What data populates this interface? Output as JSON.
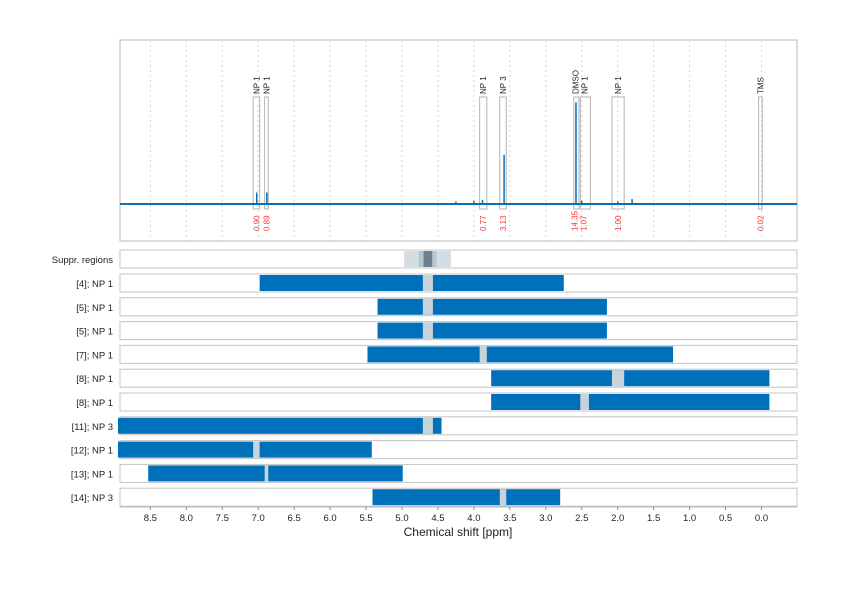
{
  "chart_data": {
    "type": "nmr-spectrum-with-region-bars",
    "xlabel": "Chemical shift [ppm]",
    "xlim": [
      8.95,
      -0.49
    ],
    "x_reversed": true,
    "xticks": [
      "8.5",
      "8.0",
      "7.5",
      "7.0",
      "6.5",
      "6.0",
      "5.5",
      "5.0",
      "4.5",
      "4.0",
      "3.5",
      "3.0",
      "2.5",
      "2.0",
      "1.5",
      "1.0",
      "0.5",
      "0.0"
    ],
    "grid": "vertical dotted",
    "colors": {
      "spectrum": "#0b6fb8",
      "bar": "#0070ba",
      "integral_label": "#ff3333",
      "gap": "#c8d2d9",
      "region_box": "#b0b0b0"
    },
    "spectrum_peaks": [
      {
        "ppm": 7.02,
        "height": 0.07
      },
      {
        "ppm": 6.88,
        "height": 0.07
      },
      {
        "ppm": 4.25,
        "height": 0.015
      },
      {
        "ppm": 4.0,
        "height": 0.02
      },
      {
        "ppm": 3.88,
        "height": 0.025
      },
      {
        "ppm": 3.58,
        "height": 0.3
      },
      {
        "ppm": 2.58,
        "height": 0.62
      },
      {
        "ppm": 2.5,
        "height": 0.02
      },
      {
        "ppm": 2.0,
        "height": 0.015
      },
      {
        "ppm": 1.8,
        "height": 0.03
      }
    ],
    "annotated_regions": [
      {
        "label": "NP 1",
        "from": 7.07,
        "to": 6.98,
        "integral": "0.90"
      },
      {
        "label": "NP 1",
        "from": 6.91,
        "to": 6.86,
        "integral": "0.89"
      },
      {
        "label": "NP 1",
        "from": 3.92,
        "to": 3.82,
        "integral": "0.77"
      },
      {
        "label": "NP 3",
        "from": 3.64,
        "to": 3.55,
        "integral": "3.13"
      },
      {
        "label": "DMSO",
        "from": 2.61,
        "to": 2.54,
        "integral": "14.35"
      },
      {
        "label": "NP 1",
        "from": 2.52,
        "to": 2.38,
        "integral": "1.07"
      },
      {
        "label": "NP 1",
        "from": 2.08,
        "to": 1.91,
        "integral": "1.00"
      },
      {
        "label": "TMS",
        "from": 0.04,
        "to": -0.01,
        "integral": "0.02"
      }
    ],
    "suppression": {
      "label": "Suppr. regions",
      "outer": [
        4.97,
        4.32
      ],
      "mid": [
        4.77,
        4.52
      ],
      "inner": [
        4.7,
        4.58
      ]
    },
    "rows": [
      {
        "label": "[4]; NP 1",
        "from": 6.98,
        "to": 2.75,
        "gap": [
          4.71,
          4.57
        ]
      },
      {
        "label": "[5]; NP 1",
        "from": 5.34,
        "to": 2.15,
        "gap": [
          4.71,
          4.57
        ]
      },
      {
        "label": "[5]; NP 1",
        "from": 5.34,
        "to": 2.15,
        "gap": [
          4.71,
          4.57
        ]
      },
      {
        "label": "[7]; NP 1",
        "from": 5.48,
        "to": 1.23,
        "gap": [
          3.92,
          3.82
        ]
      },
      {
        "label": "[8]; NP 1",
        "from": 3.76,
        "to": -0.11,
        "gap": [
          2.08,
          1.91
        ]
      },
      {
        "label": "[8]; NP 1",
        "from": 3.76,
        "to": -0.11,
        "gap": [
          2.52,
          2.4
        ]
      },
      {
        "label": "[11]; NP 3",
        "from": 8.95,
        "to": 4.45,
        "gap": [
          4.71,
          4.57
        ]
      },
      {
        "label": "[12]; NP 1",
        "from": 8.95,
        "to": 5.42,
        "gap": [
          7.07,
          6.98
        ]
      },
      {
        "label": "[13]; NP 1",
        "from": 8.53,
        "to": 4.99,
        "gap": [
          6.91,
          6.86
        ]
      },
      {
        "label": "[14]; NP 3",
        "from": 5.41,
        "to": 2.8,
        "gap": [
          3.64,
          3.55
        ]
      }
    ]
  }
}
